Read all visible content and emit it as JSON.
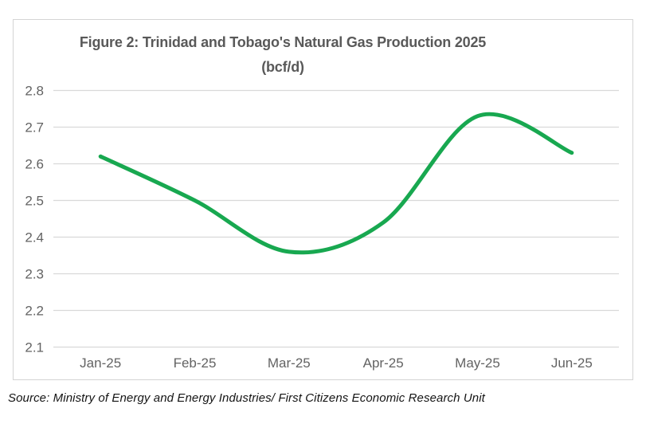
{
  "chart_data": {
    "type": "line",
    "title": "Figure 2: Trinidad and Tobago's Natural Gas Production 2025",
    "subtitle": "(bcf/d)",
    "categories": [
      "Jan-25",
      "Feb-25",
      "Mar-25",
      "Apr-25",
      "May-25",
      "Jun-25"
    ],
    "series": [
      {
        "name": "Natural gas production (bcf/d)",
        "values": [
          2.62,
          2.5,
          2.36,
          2.44,
          2.73,
          2.63
        ]
      }
    ],
    "xlabel": "",
    "ylabel": "",
    "ylim": [
      2.1,
      2.8
    ],
    "ytick_step": 0.1,
    "yticks": [
      "2.8",
      "2.7",
      "2.6",
      "2.5",
      "2.4",
      "2.3",
      "2.2",
      "2.1"
    ],
    "grid": "horizontal",
    "legend": "none",
    "line_style": "smooth",
    "colors": {
      "line": "#18a850",
      "grid": "#d9d9d9",
      "tick_text": "#636363",
      "title_text": "#595959",
      "border": "#d4d4d4"
    },
    "source": "Source: Ministry of Energy and Energy Industries/ First Citizens Economic Research Unit"
  }
}
